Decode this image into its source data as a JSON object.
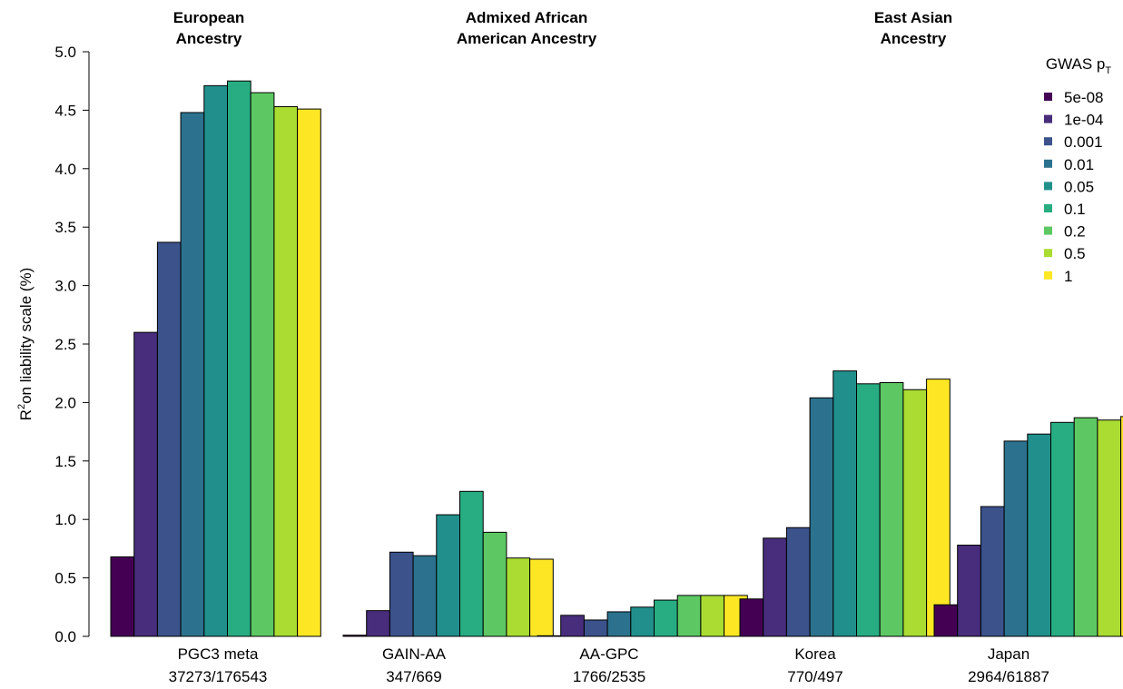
{
  "chart_data": {
    "type": "bar",
    "ylabel": {
      "main": "R",
      "sup": "2",
      "rest": "on liability scale (%)"
    },
    "ylim": [
      0,
      5
    ],
    "yticks": [
      "0.0",
      "0.5",
      "1.0",
      "1.5",
      "2.0",
      "2.5",
      "3.0",
      "3.5",
      "4.0",
      "4.5",
      "5.0"
    ],
    "group_titles": [
      {
        "lines": [
          "European",
          "Ancestry"
        ]
      },
      {
        "lines": [
          "Admixed African",
          "American Ancestry"
        ]
      },
      {
        "lines": [
          "East Asian",
          "Ancestry"
        ]
      }
    ],
    "legend": {
      "title": {
        "main": "GWAS p",
        "sub": "T"
      },
      "placement": "top-right"
    },
    "series": [
      {
        "name": "5e-08",
        "color": "#440154"
      },
      {
        "name": "1e-04",
        "color": "#472D7B"
      },
      {
        "name": "0.001",
        "color": "#3B528B"
      },
      {
        "name": "0.01",
        "color": "#2C728E"
      },
      {
        "name": "0.05",
        "color": "#21908C"
      },
      {
        "name": "0.1",
        "color": "#27AD81"
      },
      {
        "name": "0.2",
        "color": "#5DC863"
      },
      {
        "name": "0.5",
        "color": "#AADC32"
      },
      {
        "name": "1",
        "color": "#FDE725"
      }
    ],
    "categories": [
      {
        "name": "PGC3 meta",
        "counts": "37273/176543",
        "values": [
          0.68,
          2.6,
          3.37,
          4.48,
          4.71,
          4.75,
          4.65,
          4.53,
          4.51
        ]
      },
      {
        "name": "GAIN-AA",
        "counts": "347/669",
        "values": [
          0.01,
          0.22,
          0.72,
          0.69,
          1.04,
          1.24,
          0.89,
          0.67,
          0.66
        ]
      },
      {
        "name": "AA-GPC",
        "counts": "1766/2535",
        "values": [
          0.005,
          0.18,
          0.14,
          0.21,
          0.25,
          0.31,
          0.35,
          0.35,
          0.35
        ]
      },
      {
        "name": "Korea",
        "counts": "770/497",
        "values": [
          0.32,
          0.84,
          0.93,
          2.04,
          2.27,
          2.16,
          2.17,
          2.11,
          2.2
        ]
      },
      {
        "name": "Japan",
        "counts": "2964/61887",
        "values": [
          0.27,
          0.78,
          1.11,
          1.67,
          1.73,
          1.83,
          1.87,
          1.85,
          1.88
        ]
      }
    ]
  }
}
